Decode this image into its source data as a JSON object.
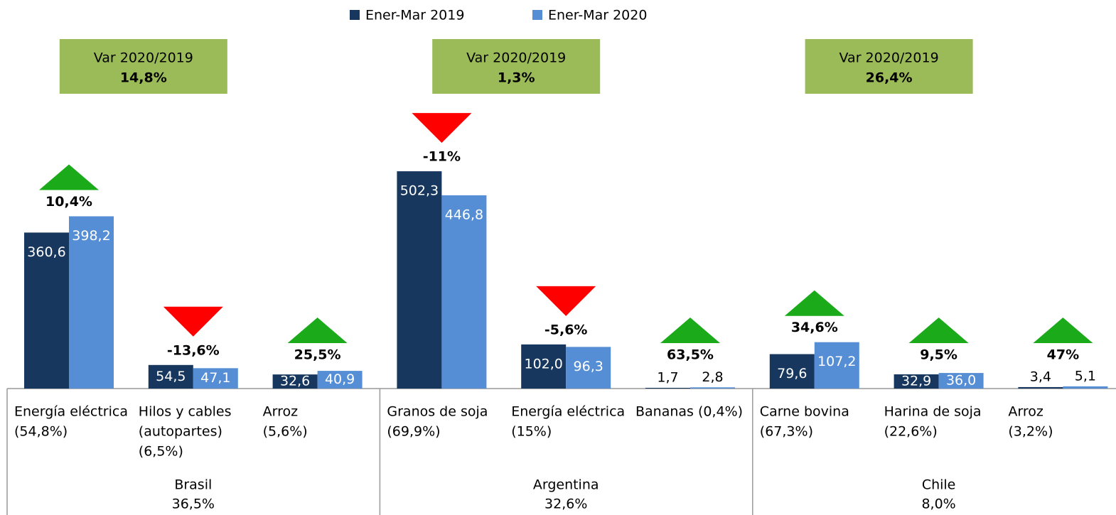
{
  "chart_data": {
    "type": "bar",
    "series": [
      {
        "name": "Ener-Mar 2019",
        "color": "#17375e",
        "values": [
          360.6,
          54.5,
          32.6,
          502.3,
          102.0,
          1.7,
          79.6,
          32.9,
          3.4
        ],
        "value_labels": [
          "360,6",
          "54,5",
          "32,6",
          "502,3",
          "102,0",
          "1,7",
          "79,6",
          "32,9",
          "3,4"
        ]
      },
      {
        "name": "Ener-Mar 2020",
        "color": "#558ed5",
        "values": [
          398.2,
          47.1,
          40.9,
          446.8,
          96.3,
          2.8,
          107.2,
          36.0,
          5.1
        ],
        "value_labels": [
          "398,2",
          "47,1",
          "40,9",
          "446,8",
          "96,3",
          "2,8",
          "107,2",
          "36,0",
          "5,1"
        ]
      }
    ],
    "changes": {
      "values": [
        10.4,
        -13.6,
        25.5,
        -11,
        -5.6,
        63.5,
        34.6,
        9.5,
        47
      ],
      "value_labels": [
        "10,4%",
        "-13,6%",
        "25,5%",
        "-11%",
        "-5,6%",
        "63,5%",
        "34,6%",
        "9,5%",
        "47%"
      ],
      "up_color": "#1aaa1a",
      "down_color": "#ff0000"
    },
    "groups": [
      {
        "name": "Brasil",
        "share": "36,5%",
        "variation_title": "Var 2020/2019",
        "variation": "14,8%",
        "categories": [
          [
            "Energía eléctrica",
            "(54,8%)"
          ],
          [
            "Hilos y cables",
            "(autopartes)",
            "(6,5%)"
          ],
          [
            "Arroz",
            "(5,6%)"
          ]
        ]
      },
      {
        "name": "Argentina",
        "share": "32,6%",
        "variation_title": "Var 2020/2019",
        "variation": "1,3%",
        "categories": [
          [
            "Granos de soja",
            "(69,9%)"
          ],
          [
            "Energía eléctrica",
            "(15%)"
          ],
          [
            "Bananas (0,4%)"
          ]
        ]
      },
      {
        "name": "Chile",
        "share": "8,0%",
        "variation_title": "Var 2020/2019",
        "variation": "26,4%",
        "categories": [
          [
            "Carne bovina",
            "(67,3%)"
          ],
          [
            "Harina de soja",
            "(22,6%)"
          ],
          [
            "Arroz",
            "(3,2%)"
          ]
        ]
      }
    ],
    "box_color": "#9bbb59"
  }
}
